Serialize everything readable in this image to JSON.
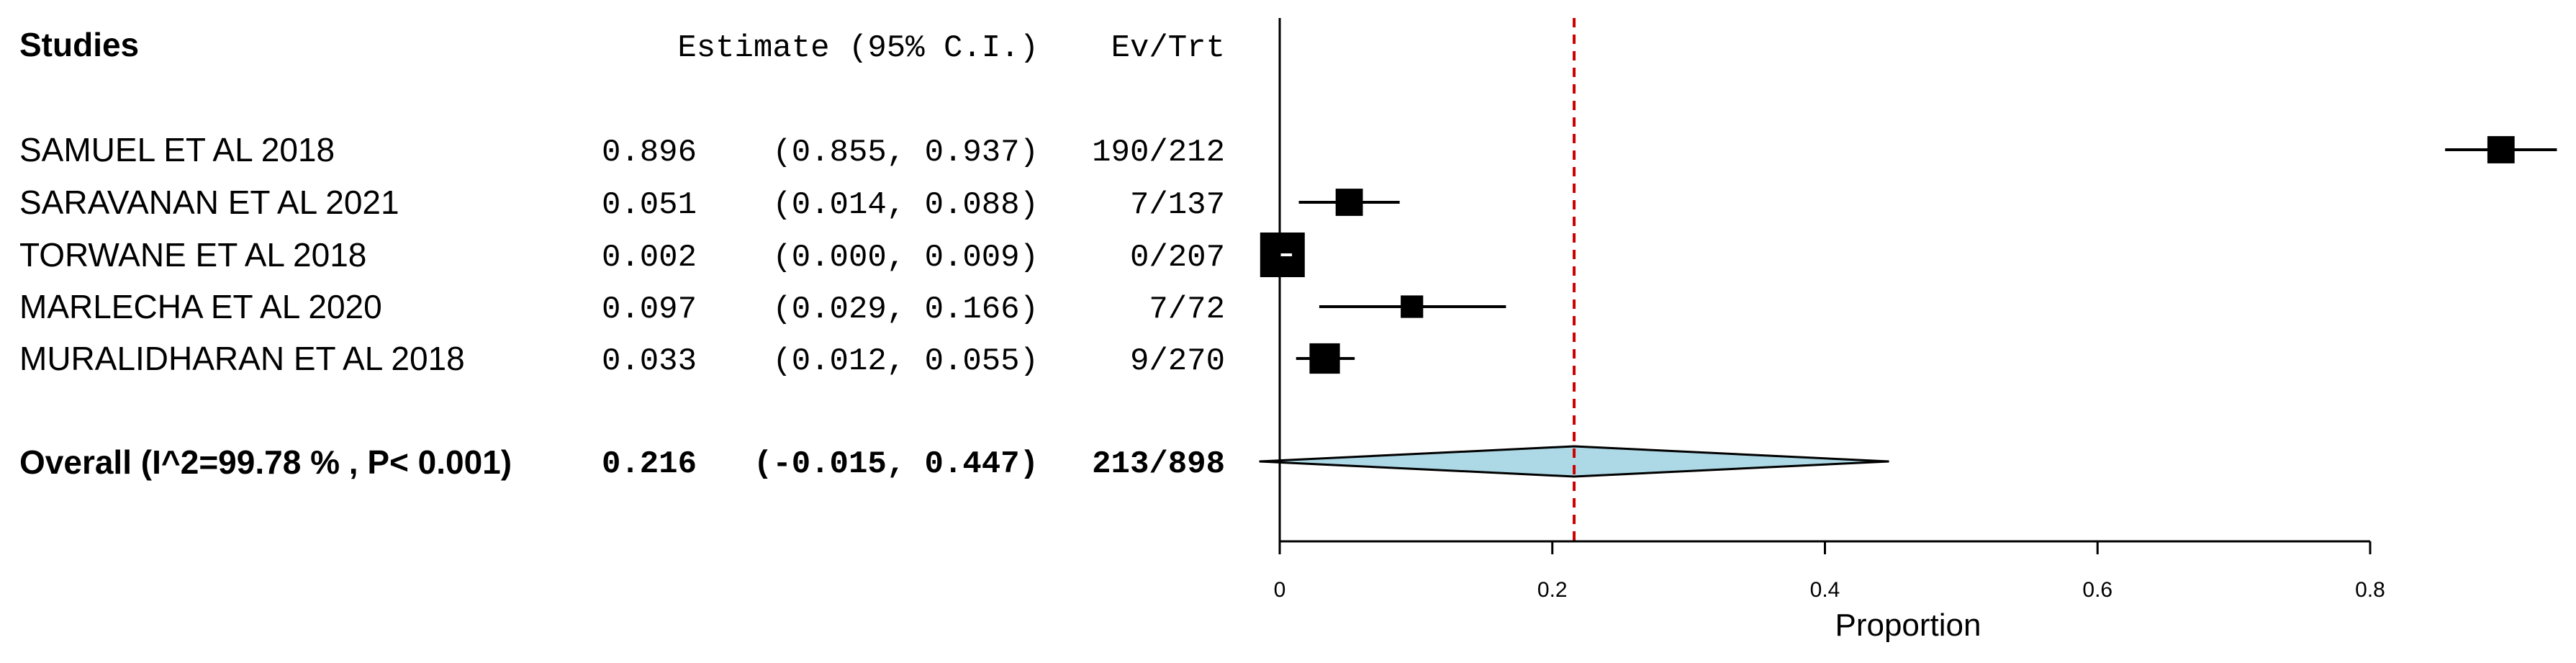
{
  "chart_data": {
    "type": "forest",
    "headers": {
      "studies": "Studies",
      "estimate": "Estimate (95% C.I.)",
      "events": "Ev/Trt"
    },
    "studies": [
      {
        "name": "SAMUEL ET AL 2018",
        "estimate": 0.896,
        "lower": 0.855,
        "upper": 0.937,
        "estimate_text": "0.896",
        "ci_text": "(0.855, 0.937)",
        "events": "190/212",
        "weight_box": 0.45
      },
      {
        "name": "SARAVANAN ET AL 2021",
        "estimate": 0.051,
        "lower": 0.014,
        "upper": 0.088,
        "estimate_text": "0.051",
        "ci_text": "(0.014, 0.088)",
        "events": "7/137",
        "weight_box": 0.45
      },
      {
        "name": "TORWANE ET AL 2018",
        "estimate": 0.002,
        "lower": 0.0,
        "upper": 0.009,
        "estimate_text": "0.002",
        "ci_text": "(0.000, 0.009)",
        "events": "0/207",
        "weight_box": 1.0
      },
      {
        "name": "MARLECHA ET AL 2020",
        "estimate": 0.097,
        "lower": 0.029,
        "upper": 0.166,
        "estimate_text": "0.097",
        "ci_text": "(0.029, 0.166)",
        "events": "7/72",
        "weight_box": 0.3
      },
      {
        "name": "MURALIDHARAN ET AL 2018",
        "estimate": 0.033,
        "lower": 0.012,
        "upper": 0.055,
        "estimate_text": "0.033",
        "ci_text": "(0.012, 0.055)",
        "events": "9/270",
        "weight_box": 0.55
      }
    ],
    "overall": {
      "label": "Overall (I^2=99.78 % , P< 0.001)",
      "estimate": 0.216,
      "lower": -0.015,
      "upper": 0.447,
      "estimate_text": "0.216",
      "ci_text": "(-0.015, 0.447)",
      "events": "213/898"
    },
    "xlabel": "Proportion",
    "xticks": [
      0,
      0.2,
      0.4,
      0.6,
      0.8
    ],
    "xtick_labels": [
      "0",
      "0.2",
      "0.4",
      "0.6",
      "0.8"
    ],
    "reference_line": 0.216,
    "colors": {
      "diamond": "#add8e6",
      "reference": "#cc0000",
      "marks": "#000000"
    }
  }
}
